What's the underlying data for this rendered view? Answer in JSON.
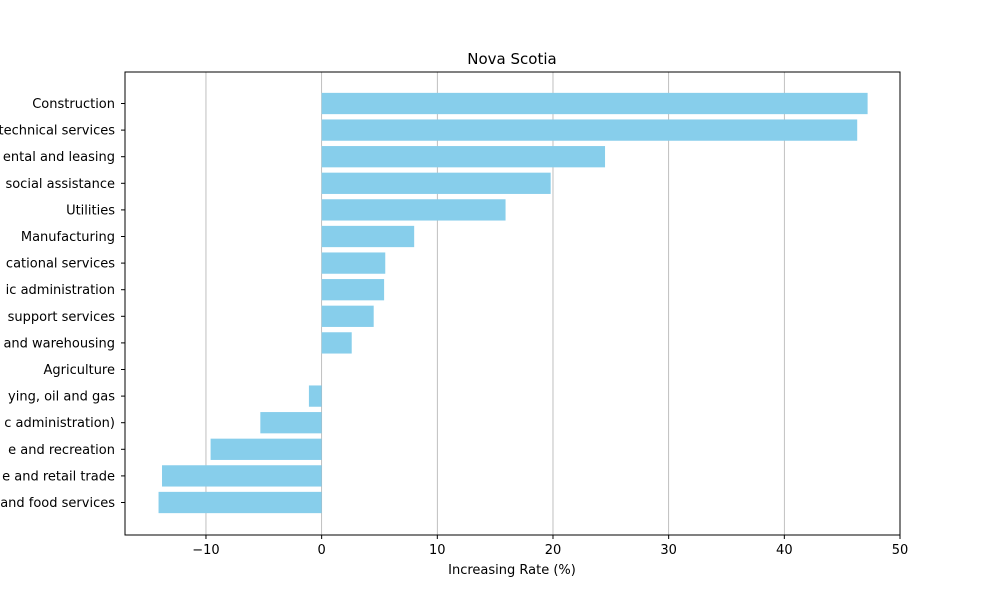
{
  "chart_data": {
    "type": "bar",
    "orientation": "horizontal",
    "title": "Nova Scotia",
    "xlabel": "Increasing Rate (%)",
    "ylabel": "",
    "xlim": [
      -17,
      50
    ],
    "xticks": [
      -10,
      0,
      10,
      20,
      30,
      40,
      50
    ],
    "grid": "x-axis vertical lines",
    "bar_color": "#87CEEB",
    "categories": [
      "Construction",
      "technical services",
      "ental and leasing",
      "social assistance",
      "Utilities",
      "Manufacturing",
      "cational services",
      "ic administration",
      "support services",
      "and warehousing",
      "Agriculture",
      "ying, oil and gas",
      "c administration)",
      "e and recreation",
      "e and retail trade",
      "and food services"
    ],
    "values": [
      47.2,
      46.3,
      24.5,
      19.8,
      15.9,
      8.0,
      5.5,
      5.4,
      4.5,
      2.6,
      0,
      -1.1,
      -5.3,
      -9.6,
      -13.8,
      -14.1
    ]
  }
}
